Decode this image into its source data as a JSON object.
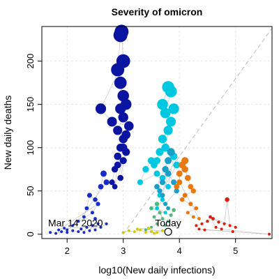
{
  "chart_data": {
    "type": "scatter",
    "title": "Severity of omicron",
    "xlabel": "log10(New daily infections)",
    "ylabel": "New daily deaths",
    "xlim": [
      1.55,
      5.65
    ],
    "ylim": [
      -5,
      240
    ],
    "x_ticks": [
      2,
      3,
      4,
      5
    ],
    "y_ticks": [
      0,
      50,
      100,
      150,
      200
    ],
    "grid": true,
    "legend": "none",
    "reference_line": {
      "style": "dashed",
      "x": [
        3.0,
        5.65
      ],
      "y": [
        0,
        238
      ]
    },
    "annotations": [
      {
        "text": "Mar 14 2020",
        "x": 2.15,
        "y": 2
      },
      {
        "text": "Today",
        "x": 3.8,
        "y": 2,
        "marker": "circle"
      }
    ],
    "series": [
      {
        "color": "#1a2cc8",
        "points": [
          [
            1.7,
            2
          ],
          [
            1.8,
            1
          ],
          [
            1.9,
            3
          ],
          [
            2.0,
            2
          ],
          [
            2.1,
            4
          ],
          [
            2.2,
            3
          ],
          [
            2.25,
            6
          ],
          [
            2.3,
            2
          ],
          [
            2.35,
            8
          ],
          [
            2.4,
            4
          ],
          [
            2.45,
            10
          ],
          [
            2.5,
            5
          ],
          [
            2.55,
            12
          ],
          [
            2.3,
            20
          ],
          [
            2.35,
            30
          ],
          [
            2.4,
            45
          ],
          [
            2.5,
            40
          ],
          [
            2.6,
            55
          ],
          [
            2.65,
            70
          ],
          [
            2.7,
            60
          ],
          [
            2.2,
            15
          ],
          [
            2.1,
            10
          ],
          [
            2.0,
            5
          ],
          [
            2.45,
            25
          ],
          [
            2.55,
            35
          ],
          [
            1.85,
            5
          ],
          [
            1.95,
            7
          ],
          [
            2.6,
            8
          ],
          [
            2.7,
            12
          ],
          [
            2.5,
            18
          ]
        ]
      },
      {
        "color": "#0a14a0",
        "points": [
          [
            2.8,
            60
          ],
          [
            2.85,
            75
          ],
          [
            2.9,
            90
          ],
          [
            2.95,
            100
          ],
          [
            3.0,
            110
          ],
          [
            2.9,
            120
          ],
          [
            3.0,
            135
          ],
          [
            3.05,
            150
          ],
          [
            2.95,
            145
          ],
          [
            3.0,
            160
          ],
          [
            2.95,
            175
          ],
          [
            2.9,
            190
          ],
          [
            2.95,
            230
          ],
          [
            2.97,
            234
          ],
          [
            3.0,
            200
          ],
          [
            2.6,
            145
          ],
          [
            2.8,
            130
          ],
          [
            3.1,
            125
          ],
          [
            3.05,
            115
          ],
          [
            3.0,
            100
          ],
          [
            2.9,
            80
          ],
          [
            2.85,
            55
          ],
          [
            3.0,
            85
          ],
          [
            3.05,
            95
          ],
          [
            2.95,
            65
          ]
        ]
      },
      {
        "color": "#00c8e0",
        "points": [
          [
            3.7,
            150
          ],
          [
            3.8,
            170
          ],
          [
            3.85,
            165
          ],
          [
            3.75,
            140
          ],
          [
            3.8,
            120
          ],
          [
            3.7,
            110
          ],
          [
            3.85,
            130
          ],
          [
            3.9,
            145
          ],
          [
            3.75,
            100
          ],
          [
            3.65,
            95
          ],
          [
            3.6,
            85
          ],
          [
            3.55,
            80
          ],
          [
            3.5,
            85
          ],
          [
            3.4,
            75
          ],
          [
            3.3,
            60
          ],
          [
            3.6,
            70
          ],
          [
            3.7,
            65
          ],
          [
            3.8,
            55
          ],
          [
            3.9,
            90
          ],
          [
            3.95,
            80
          ],
          [
            3.65,
            45
          ],
          [
            3.7,
            40
          ],
          [
            3.6,
            30
          ],
          [
            3.75,
            25
          ]
        ]
      },
      {
        "color": "#1aa0c8",
        "points": [
          [
            3.7,
            60
          ],
          [
            3.75,
            75
          ],
          [
            3.8,
            85
          ],
          [
            3.85,
            95
          ],
          [
            3.6,
            55
          ],
          [
            3.65,
            50
          ],
          [
            3.7,
            45
          ],
          [
            3.8,
            70
          ],
          [
            3.9,
            60
          ],
          [
            3.95,
            50
          ],
          [
            3.75,
            35
          ],
          [
            3.8,
            30
          ]
        ]
      },
      {
        "color": "#50b878",
        "points": [
          [
            3.4,
            5
          ],
          [
            3.5,
            8
          ],
          [
            3.6,
            12
          ],
          [
            3.55,
            20
          ],
          [
            3.65,
            25
          ],
          [
            3.7,
            18
          ],
          [
            3.8,
            15
          ],
          [
            3.75,
            10
          ],
          [
            3.6,
            35
          ],
          [
            3.5,
            30
          ],
          [
            3.85,
            22
          ],
          [
            3.9,
            28
          ]
        ]
      },
      {
        "color": "#d4cc00",
        "points": [
          [
            3.0,
            2
          ],
          [
            3.1,
            4
          ],
          [
            3.2,
            3
          ],
          [
            3.3,
            5
          ],
          [
            3.4,
            2
          ],
          [
            3.5,
            3
          ],
          [
            3.6,
            2
          ],
          [
            3.7,
            4
          ],
          [
            3.25,
            6
          ],
          [
            3.45,
            7
          ],
          [
            3.55,
            1
          ]
        ]
      },
      {
        "color": "#e87810",
        "points": [
          [
            4.0,
            70
          ],
          [
            4.1,
            75
          ],
          [
            4.15,
            65
          ],
          [
            4.2,
            55
          ],
          [
            4.25,
            50
          ],
          [
            4.1,
            45
          ],
          [
            4.05,
            40
          ],
          [
            4.2,
            35
          ],
          [
            4.3,
            30
          ],
          [
            4.15,
            25
          ],
          [
            4.25,
            20
          ],
          [
            4.35,
            18
          ],
          [
            4.0,
            60
          ],
          [
            3.95,
            55
          ],
          [
            4.1,
            85
          ],
          [
            4.05,
            80
          ]
        ]
      },
      {
        "color": "#d82010",
        "points": [
          [
            4.3,
            10
          ],
          [
            4.4,
            12
          ],
          [
            4.5,
            15
          ],
          [
            4.6,
            18
          ],
          [
            4.7,
            14
          ],
          [
            4.8,
            12
          ],
          [
            4.85,
            40
          ],
          [
            4.9,
            10
          ],
          [
            5.0,
            8
          ],
          [
            4.55,
            20
          ],
          [
            4.65,
            8
          ],
          [
            4.75,
            6
          ],
          [
            5.6,
            0
          ],
          [
            4.45,
            5
          ],
          [
            4.35,
            6
          ],
          [
            4.95,
            3
          ]
        ]
      }
    ]
  }
}
